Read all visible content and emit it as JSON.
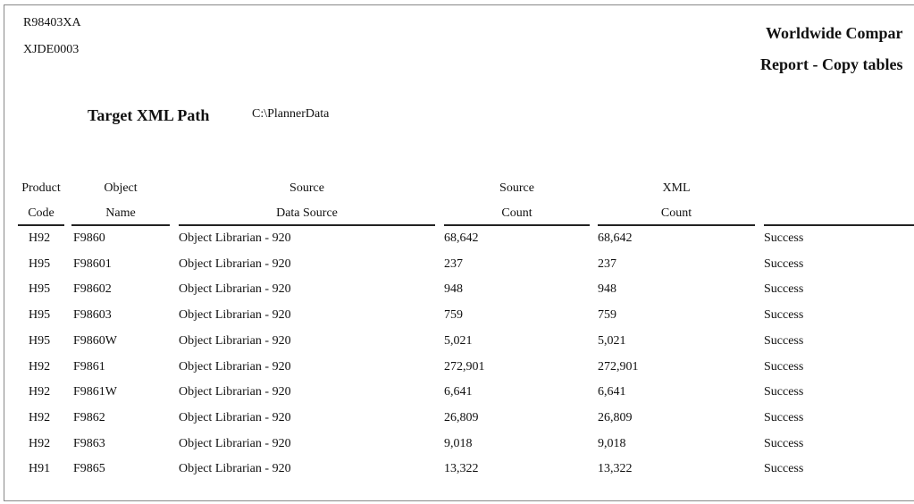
{
  "report": {
    "program_id": "R98403XA",
    "version_id": "XJDE0003",
    "company": "Worldwide Compar",
    "title": "Report - Copy tables",
    "target_label": "Target XML Path",
    "target_value": "C:\\PlannerData"
  },
  "columns": [
    {
      "line1": "Product",
      "line2": "Code"
    },
    {
      "line1": "Object",
      "line2": "Name"
    },
    {
      "line1": "Source",
      "line2": "Data Source"
    },
    {
      "line1": "Source",
      "line2": "Count"
    },
    {
      "line1": "XML",
      "line2": "Count"
    },
    {
      "line1": "",
      "line2": ""
    }
  ],
  "rows": [
    {
      "product": "H92",
      "object": "F9860",
      "source": "Object Librarian - 920",
      "source_count": "68,642",
      "xml_count": "68,642",
      "status": "Success"
    },
    {
      "product": "H95",
      "object": "F98601",
      "source": "Object Librarian - 920",
      "source_count": "237",
      "xml_count": "237",
      "status": "Success"
    },
    {
      "product": "H95",
      "object": "F98602",
      "source": "Object Librarian - 920",
      "source_count": "948",
      "xml_count": "948",
      "status": "Success"
    },
    {
      "product": "H95",
      "object": "F98603",
      "source": "Object Librarian - 920",
      "source_count": "759",
      "xml_count": "759",
      "status": "Success"
    },
    {
      "product": "H95",
      "object": "F9860W",
      "source": "Object Librarian - 920",
      "source_count": "5,021",
      "xml_count": "5,021",
      "status": "Success"
    },
    {
      "product": "H92",
      "object": "F9861",
      "source": "Object Librarian - 920",
      "source_count": "272,901",
      "xml_count": "272,901",
      "status": "Success"
    },
    {
      "product": "H92",
      "object": "F9861W",
      "source": "Object Librarian - 920",
      "source_count": "6,641",
      "xml_count": "6,641",
      "status": "Success"
    },
    {
      "product": "H92",
      "object": "F9862",
      "source": "Object Librarian - 920",
      "source_count": "26,809",
      "xml_count": "26,809",
      "status": "Success"
    },
    {
      "product": "H92",
      "object": "F9863",
      "source": "Object Librarian - 920",
      "source_count": "9,018",
      "xml_count": "9,018",
      "status": "Success"
    },
    {
      "product": "H91",
      "object": "F9865",
      "source": "Object Librarian - 920",
      "source_count": "13,322",
      "xml_count": "13,322",
      "status": "Success"
    }
  ]
}
